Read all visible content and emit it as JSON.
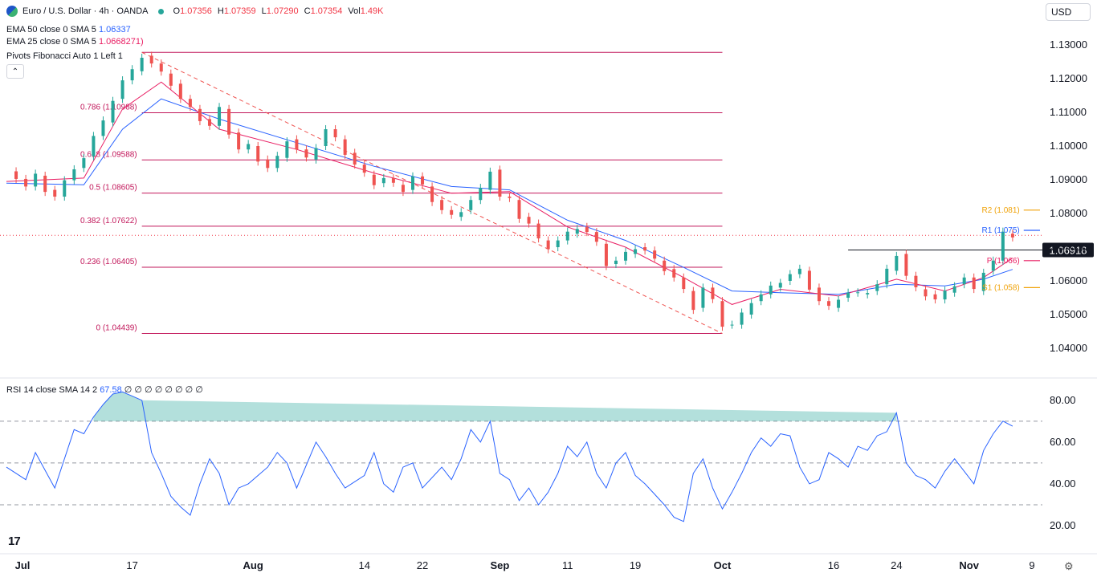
{
  "header": {
    "symbol": "Euro / U.S. Dollar · 4h · OANDA",
    "ohlc": [
      {
        "label": "O",
        "value": "1.07356"
      },
      {
        "label": "H",
        "value": "1.07359"
      },
      {
        "label": "L",
        "value": "1.07290"
      },
      {
        "label": "C",
        "value": "1.07354"
      },
      {
        "label": "Vol",
        "value": "1.49K"
      }
    ]
  },
  "indicators": {
    "ema50_label": "EMA 50 close 0 SMA 5",
    "ema50_value": "1.06337",
    "ema25_label": "EMA 25 close 0 SMA 5",
    "ema25_value": "1.06682",
    "ema25_extra": "71)",
    "pivots_label": "Pivots Fibonacci Auto 1 Left 1"
  },
  "currency_button": "USD",
  "collapse_icon": "chevron-up-icon",
  "rsi": {
    "label": "RSI 14 close SMA 14 2",
    "value": "67.58",
    "extras": "∅ ∅ ∅ ∅ ∅ ∅ ∅ ∅"
  },
  "colors": {
    "up": "#26a69a",
    "down": "#ef5350",
    "ema50": "#2962ff",
    "ema25": "#e91e63",
    "fib": "#c2185b",
    "rsi": "#2962ff",
    "pivot_r2": "#f0a30a",
    "pivot_s1": "#f0a30a",
    "last_price_line": "#f23645"
  },
  "chart_data": [
    {
      "type": "candlestick",
      "title": "Euro / U.S. Dollar · 4h · OANDA",
      "ylim": [
        1.035,
        1.135
      ],
      "y_ticks": [
        "1.13000",
        "1.12000",
        "1.11000",
        "1.10000",
        "1.09000",
        "1.08000",
        "1.07000",
        "1.06000",
        "1.05000",
        "1.04000"
      ],
      "x_ticks": [
        "Jul",
        "17",
        "Aug",
        "14",
        "22",
        "Sep",
        "11",
        "19",
        "Oct",
        "16",
        "24",
        "Nov",
        "9"
      ],
      "x_tick_positions": [
        0.0,
        13.0,
        25.5,
        37.0,
        43.0,
        51.0,
        58.0,
        65.0,
        74.0,
        85.5,
        92.0,
        99.5,
        106.0
      ],
      "close_price": [
        [
          0,
          1.0925
        ],
        [
          2,
          1.088
        ],
        [
          3,
          1.0912
        ],
        [
          4,
          1.087
        ],
        [
          5,
          1.085
        ],
        [
          7,
          1.0935
        ],
        [
          8,
          1.097
        ],
        [
          9,
          1.103
        ],
        [
          10,
          1.107
        ],
        [
          11,
          1.114
        ],
        [
          12,
          1.1195
        ],
        [
          13,
          1.1222
        ],
        [
          14,
          1.1268
        ],
        [
          15,
          1.1245
        ],
        [
          16,
          1.1215
        ],
        [
          17,
          1.1185
        ],
        [
          18,
          1.114
        ],
        [
          19,
          1.111
        ],
        [
          20,
          1.108
        ],
        [
          21,
          1.106
        ],
        [
          22,
          1.111
        ],
        [
          23,
          1.104
        ],
        [
          24,
          1.099
        ],
        [
          25,
          1.1
        ],
        [
          26,
          1.096
        ],
        [
          27,
          1.0935
        ],
        [
          28,
          1.0965
        ],
        [
          29,
          1.102
        ],
        [
          30,
          1.099
        ],
        [
          31,
          1.096
        ],
        [
          32,
          1.1
        ],
        [
          33,
          1.105
        ],
        [
          34,
          1.102
        ],
        [
          35,
          1.098
        ],
        [
          36,
          1.0945
        ],
        [
          37,
          1.0915
        ],
        [
          38,
          1.089
        ],
        [
          39,
          1.0905
        ],
        [
          40,
          1.0885
        ],
        [
          41,
          1.087
        ],
        [
          42,
          1.091
        ],
        [
          43,
          1.088
        ],
        [
          44,
          1.084
        ],
        [
          45,
          1.081
        ],
        [
          46,
          1.079
        ],
        [
          47,
          1.081
        ],
        [
          48,
          1.084
        ],
        [
          49,
          1.087
        ],
        [
          50,
          1.093
        ],
        [
          51,
          1.085
        ],
        [
          52,
          1.084
        ],
        [
          53,
          1.079
        ],
        [
          54,
          1.077
        ],
        [
          55,
          1.072
        ],
        [
          56,
          1.07
        ],
        [
          57,
          1.072
        ],
        [
          58,
          1.074
        ],
        [
          59,
          1.076
        ],
        [
          60,
          1.0745
        ],
        [
          61,
          1.071
        ],
        [
          62,
          1.065
        ],
        [
          63,
          1.066
        ],
        [
          64,
          1.068
        ],
        [
          65,
          1.07
        ],
        [
          66,
          1.069
        ],
        [
          67,
          1.066
        ],
        [
          68,
          1.0635
        ],
        [
          69,
          1.061
        ],
        [
          70,
          1.057
        ],
        [
          71,
          1.052
        ],
        [
          72,
          1.058
        ],
        [
          73,
          1.054
        ],
        [
          74,
          1.047
        ],
        [
          75,
          1.047
        ],
        [
          76,
          1.05
        ],
        [
          77,
          1.054
        ],
        [
          78,
          1.056
        ],
        [
          79,
          1.058
        ],
        [
          80,
          1.06
        ],
        [
          81,
          1.062
        ],
        [
          82,
          1.063
        ],
        [
          83,
          1.058
        ],
        [
          84,
          1.054
        ],
        [
          85,
          1.052
        ],
        [
          86,
          1.055
        ],
        [
          87,
          1.0565
        ],
        [
          88,
          1.056
        ],
        [
          89,
          1.057
        ],
        [
          90,
          1.059
        ],
        [
          91,
          1.063
        ],
        [
          92,
          1.068
        ],
        [
          93,
          1.0615
        ],
        [
          94,
          1.0575
        ],
        [
          95,
          1.056
        ],
        [
          96,
          1.0545
        ],
        [
          97,
          1.0565
        ],
        [
          98,
          1.059
        ],
        [
          99,
          1.061
        ],
        [
          100,
          1.057
        ],
        [
          101,
          1.063
        ],
        [
          102,
          1.066
        ],
        [
          103,
          1.074
        ],
        [
          104,
          1.0735
        ]
      ],
      "series": [
        {
          "name": "EMA 50 close 0 SMA 5",
          "color": "#2962ff",
          "values": [
            [
              0,
              1.089
            ],
            [
              8,
              1.0885
            ],
            [
              12,
              1.105
            ],
            [
              16,
              1.114
            ],
            [
              22,
              1.108
            ],
            [
              30,
              1.101
            ],
            [
              38,
              1.094
            ],
            [
              46,
              1.088
            ],
            [
              52,
              1.087
            ],
            [
              58,
              1.078
            ],
            [
              64,
              1.072
            ],
            [
              70,
              1.064
            ],
            [
              75,
              1.057
            ],
            [
              80,
              1.0565
            ],
            [
              86,
              1.056
            ],
            [
              92,
              1.059
            ],
            [
              97,
              1.0585
            ],
            [
              101,
              1.0605
            ],
            [
              104,
              1.0634
            ]
          ]
        },
        {
          "name": "EMA 25 close 0 SMA 5",
          "color": "#e91e63",
          "values": [
            [
              0,
              1.0895
            ],
            [
              8,
              1.0905
            ],
            [
              12,
              1.111
            ],
            [
              16,
              1.119
            ],
            [
              22,
              1.105
            ],
            [
              30,
              1.099
            ],
            [
              38,
              1.092
            ],
            [
              46,
              1.086
            ],
            [
              52,
              1.0865
            ],
            [
              58,
              1.076
            ],
            [
              64,
              1.07
            ],
            [
              70,
              1.061
            ],
            [
              75,
              1.053
            ],
            [
              80,
              1.0575
            ],
            [
              86,
              1.0555
            ],
            [
              92,
              1.0605
            ],
            [
              97,
              1.057
            ],
            [
              101,
              1.061
            ],
            [
              104,
              1.0668
            ]
          ]
        }
      ],
      "fib_levels": [
        {
          "label": "",
          "value": 1.1278
        },
        {
          "label": "0.786 (1.10988)",
          "value": 1.10988
        },
        {
          "label": "0.618 (1.09588)",
          "value": 1.09588
        },
        {
          "label": "0.5 (1.08605)",
          "value": 1.08605
        },
        {
          "label": "0.382 (1.07622)",
          "value": 1.07622
        },
        {
          "label": "0.236 (1.06405)",
          "value": 1.06405
        },
        {
          "label": "0 (1.04439)",
          "value": 1.04439
        }
      ],
      "fib_x_range": [
        14,
        74
      ],
      "pivots": [
        {
          "label": "R2 (1.081)",
          "value": 1.081,
          "color": "#f0a30a"
        },
        {
          "label": "R1 (1.075)",
          "value": 1.075,
          "color": "#2962ff"
        },
        {
          "label": "P (1.066)",
          "value": 1.066,
          "color": "#e91e63"
        },
        {
          "label": "S1 (1.058)",
          "value": 1.058,
          "color": "#f0a30a"
        }
      ],
      "pivot_x_range": [
        101,
        106
      ],
      "horizontal_line": {
        "value": 1.06918,
        "label": "1.06918",
        "x_start": 87
      },
      "trendline": {
        "from": [
          14,
          1.1278
        ],
        "to": [
          74,
          1.0444
        ]
      },
      "last_price": 1.0735
    },
    {
      "type": "line",
      "title": "RSI 14 close SMA 14 2",
      "ylim": [
        15,
        88
      ],
      "y_ticks": [
        "80.00",
        "60.00",
        "40.00",
        "20.00"
      ],
      "levels": [
        70,
        50,
        30
      ],
      "values": [
        [
          0,
          48
        ],
        [
          2,
          42
        ],
        [
          3,
          55
        ],
        [
          5,
          38
        ],
        [
          7,
          66
        ],
        [
          8,
          64
        ],
        [
          9,
          72
        ],
        [
          10,
          78
        ],
        [
          11,
          83
        ],
        [
          12,
          84
        ],
        [
          13,
          82
        ],
        [
          14,
          80
        ],
        [
          15,
          55
        ],
        [
          16,
          45
        ],
        [
          17,
          34
        ],
        [
          18,
          29
        ],
        [
          19,
          25
        ],
        [
          20,
          40
        ],
        [
          21,
          52
        ],
        [
          22,
          45
        ],
        [
          23,
          30
        ],
        [
          24,
          38
        ],
        [
          25,
          40
        ],
        [
          27,
          48
        ],
        [
          28,
          55
        ],
        [
          29,
          50
        ],
        [
          30,
          38
        ],
        [
          32,
          60
        ],
        [
          33,
          53
        ],
        [
          34,
          45
        ],
        [
          35,
          38
        ],
        [
          37,
          44
        ],
        [
          38,
          55
        ],
        [
          39,
          40
        ],
        [
          40,
          36
        ],
        [
          41,
          48
        ],
        [
          42,
          50
        ],
        [
          43,
          38
        ],
        [
          45,
          48
        ],
        [
          46,
          42
        ],
        [
          47,
          52
        ],
        [
          48,
          66
        ],
        [
          49,
          60
        ],
        [
          50,
          70
        ],
        [
          51,
          45
        ],
        [
          52,
          42
        ],
        [
          53,
          32
        ],
        [
          54,
          38
        ],
        [
          55,
          30
        ],
        [
          56,
          36
        ],
        [
          57,
          45
        ],
        [
          58,
          58
        ],
        [
          59,
          53
        ],
        [
          60,
          60
        ],
        [
          61,
          45
        ],
        [
          62,
          38
        ],
        [
          63,
          50
        ],
        [
          64,
          55
        ],
        [
          65,
          44
        ],
        [
          66,
          40
        ],
        [
          67,
          35
        ],
        [
          68,
          30
        ],
        [
          69,
          24
        ],
        [
          70,
          22
        ],
        [
          71,
          45
        ],
        [
          72,
          52
        ],
        [
          73,
          38
        ],
        [
          74,
          28
        ],
        [
          75,
          36
        ],
        [
          76,
          45
        ],
        [
          77,
          55
        ],
        [
          78,
          62
        ],
        [
          79,
          58
        ],
        [
          80,
          64
        ],
        [
          81,
          63
        ],
        [
          82,
          48
        ],
        [
          83,
          40
        ],
        [
          84,
          42
        ],
        [
          85,
          55
        ],
        [
          86,
          52
        ],
        [
          87,
          48
        ],
        [
          88,
          58
        ],
        [
          89,
          56
        ],
        [
          90,
          63
        ],
        [
          91,
          65
        ],
        [
          92,
          74
        ],
        [
          93,
          50
        ],
        [
          94,
          44
        ],
        [
          95,
          42
        ],
        [
          96,
          38
        ],
        [
          97,
          46
        ],
        [
          98,
          52
        ],
        [
          99,
          46
        ],
        [
          100,
          40
        ],
        [
          101,
          56
        ],
        [
          102,
          64
        ],
        [
          103,
          70
        ],
        [
          104,
          67.58
        ]
      ],
      "x_ticks": [
        "Jul",
        "17",
        "Aug",
        "14",
        "22",
        "Sep",
        "11",
        "19",
        "Oct",
        "16",
        "24",
        "Nov",
        "9"
      ]
    }
  ]
}
